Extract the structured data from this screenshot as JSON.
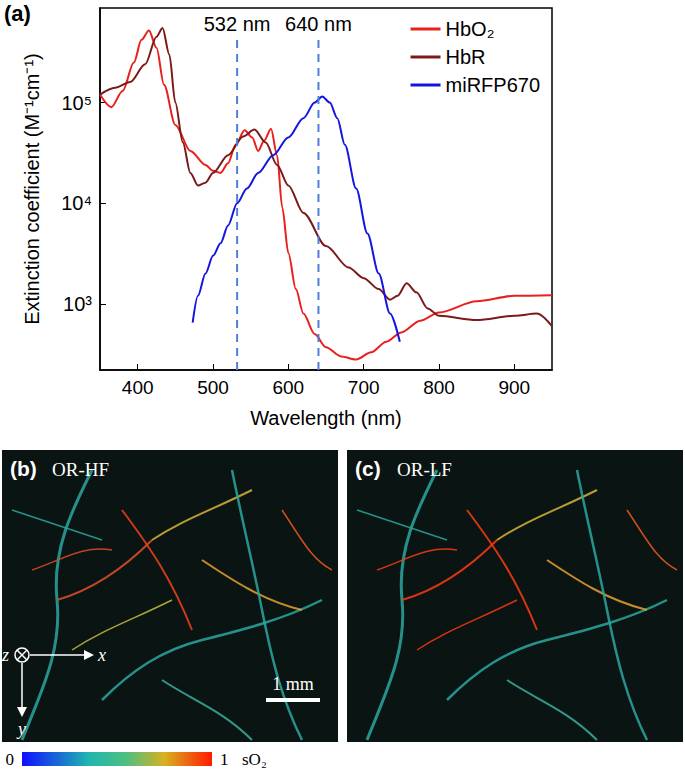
{
  "chart_data": {
    "type": "line",
    "panel_label": "(a)",
    "x_label": "Wavelength (nm)",
    "y_label": "Extinction coefficient (M⁻¹cm⁻¹)",
    "log": "y",
    "grid": false,
    "legend": "upper right",
    "xlim": [
      350,
      950
    ],
    "xticks": [
      400,
      500,
      600,
      700,
      800,
      900
    ],
    "ylim": [
      220,
      870000
    ],
    "yticks": [
      {
        "value": 1000,
        "label": "10³"
      },
      {
        "value": 10000,
        "label": "10⁴"
      },
      {
        "value": 100000,
        "label": "10⁵"
      }
    ],
    "annotations": [
      {
        "x": 532,
        "text": "532 nm"
      },
      {
        "x": 640,
        "text": "640 nm"
      }
    ],
    "series": [
      {
        "name": "HbO₂",
        "color": "#e8201c",
        "x": [
          350,
          365,
          380,
          395,
          405,
          415,
          425,
          435,
          450,
          470,
          490,
          500,
          510,
          520,
          530,
          542,
          552,
          560,
          568,
          577,
          585,
          592,
          600,
          610,
          620,
          635,
          650,
          670,
          690,
          710,
          730,
          750,
          775,
          800,
          850,
          900,
          950
        ],
        "values": [
          120000,
          90000,
          130000,
          250000,
          420000,
          520000,
          350000,
          150000,
          60000,
          33000,
          24000,
          21000,
          20000,
          25000,
          38000,
          53000,
          45000,
          33000,
          42000,
          55000,
          30000,
          9000,
          3200,
          1400,
          800,
          500,
          370,
          300,
          280,
          330,
          420,
          520,
          680,
          820,
          1060,
          1200,
          1220
        ]
      },
      {
        "name": "HbR",
        "color": "#7b1a1a",
        "x": [
          350,
          370,
          390,
          410,
          425,
          433,
          442,
          450,
          460,
          470,
          480,
          490,
          500,
          520,
          540,
          555,
          570,
          585,
          600,
          620,
          650,
          680,
          700,
          720,
          735,
          745,
          757,
          770,
          785,
          800,
          850,
          900,
          930,
          950
        ],
        "values": [
          120000,
          140000,
          160000,
          240000,
          450000,
          550000,
          300000,
          100000,
          40000,
          20000,
          15000,
          16000,
          20000,
          30000,
          46000,
          54000,
          40000,
          24000,
          15000,
          8000,
          3750,
          2300,
          1800,
          1400,
          1100,
          1200,
          1600,
          1300,
          900,
          760,
          690,
          760,
          800,
          600
        ]
      },
      {
        "name": "miRFP670",
        "color": "#1515e0",
        "x": [
          473,
          480,
          490,
          500,
          510,
          520,
          532,
          545,
          560,
          580,
          600,
          620,
          635,
          645,
          655,
          665,
          675,
          690,
          705,
          720,
          735,
          748
        ],
        "values": [
          650,
          1200,
          2000,
          3000,
          4000,
          6000,
          10000,
          14000,
          20000,
          30000,
          45000,
          70000,
          100000,
          115000,
          100000,
          70000,
          38000,
          14000,
          5000,
          2000,
          800,
          420
        ]
      }
    ]
  },
  "panels": [
    {
      "label": "(b)",
      "title": "OR-HF"
    },
    {
      "label": "(c)",
      "title": "OR-LF"
    }
  ],
  "axes_glyph": {
    "z": "z",
    "x": "x",
    "y": "y"
  },
  "scale_bar": "1 mm",
  "colorbar": {
    "min": 0,
    "max": 1,
    "ticks": [
      0,
      1
    ],
    "label": "sO₂"
  }
}
